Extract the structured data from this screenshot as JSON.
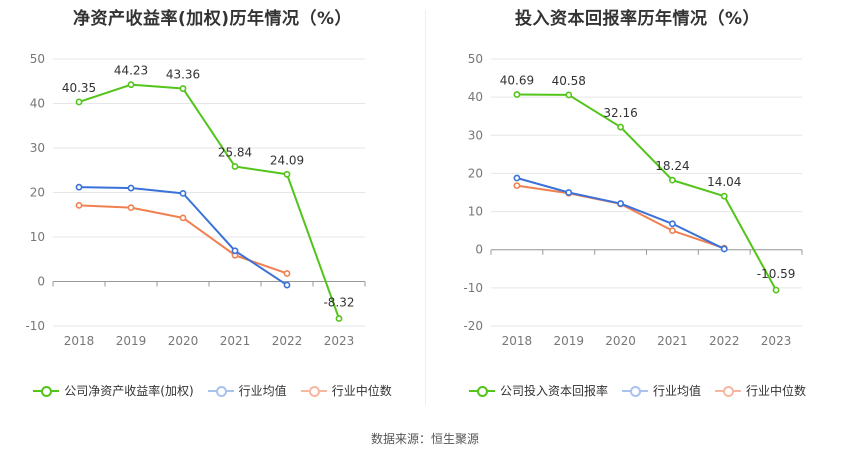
{
  "source": "数据来源：恒生聚源",
  "chart_data": [
    {
      "type": "line",
      "title": "净资产收益率(加权)历年情况（%）",
      "categories": [
        "2018",
        "2019",
        "2020",
        "2021",
        "2022",
        "2023"
      ],
      "ylim": [
        -10,
        50
      ],
      "yticks": [
        50,
        40,
        30,
        20,
        10,
        0,
        -10
      ],
      "series": [
        {
          "name": "公司净资产收益率(加权)",
          "color": "#52c41a",
          "values": [
            40.35,
            44.23,
            43.36,
            25.84,
            24.09,
            -8.32
          ],
          "labels": [
            "40.35",
            "44.23",
            "43.36",
            "25.84",
            "24.09",
            "-8.32"
          ]
        },
        {
          "name": "行业均值",
          "color": "#3a72d9",
          "values": [
            21.2,
            21.0,
            19.8,
            6.9,
            -0.8,
            null
          ]
        },
        {
          "name": "行业中位数",
          "color": "#f08050",
          "values": [
            17.1,
            16.6,
            14.3,
            5.9,
            1.8,
            null
          ]
        }
      ]
    },
    {
      "type": "line",
      "title": "投入资本回报率历年情况（%）",
      "categories": [
        "2018",
        "2019",
        "2020",
        "2021",
        "2022",
        "2023"
      ],
      "ylim": [
        -20,
        50
      ],
      "yticks": [
        50,
        40,
        30,
        20,
        10,
        0,
        -10,
        -20
      ],
      "series": [
        {
          "name": "公司投入资本回报率",
          "color": "#52c41a",
          "values": [
            40.69,
            40.58,
            32.16,
            18.24,
            14.04,
            -10.59
          ],
          "labels": [
            "40.69",
            "40.58",
            "32.16",
            "18.24",
            "14.04",
            "-10.59"
          ]
        },
        {
          "name": "行业均值",
          "color": "#3a72d9",
          "values": [
            18.8,
            15.0,
            12.1,
            6.8,
            0.2,
            null
          ]
        },
        {
          "name": "行业中位数",
          "color": "#f08050",
          "values": [
            16.8,
            14.8,
            12.0,
            5.0,
            0.4,
            null
          ]
        }
      ]
    }
  ]
}
